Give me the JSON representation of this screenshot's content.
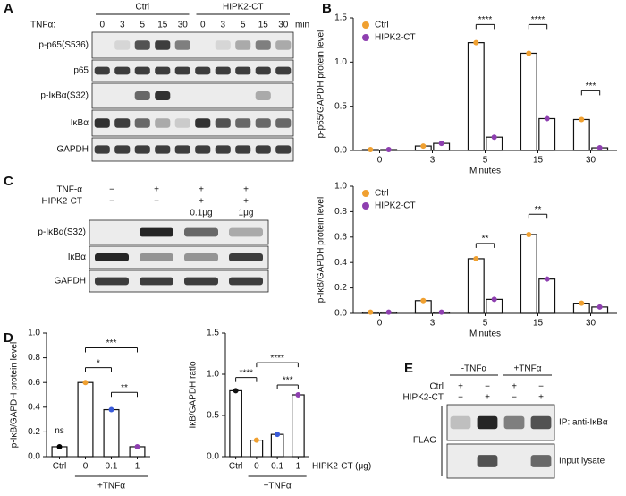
{
  "panel_labels": [
    "A",
    "B",
    "C",
    "D",
    "E"
  ],
  "blot_a": {
    "groups": [
      "Ctrl",
      "HIPK2-CT"
    ],
    "row_label": "TNFα:",
    "lanes": [
      "0",
      "3",
      "5",
      "15",
      "30",
      "0",
      "3",
      "5",
      "15",
      "30"
    ],
    "unit": "min",
    "rows": [
      "p-p65(S536)",
      "p65",
      "p-IκBα(S32)",
      "IκBα",
      "GAPDH"
    ]
  },
  "blot_c": {
    "rows_top": [
      {
        "label": "TNF-α",
        "marks": [
          "−",
          "+",
          "+",
          "+"
        ]
      },
      {
        "label": "HIPK2-CT",
        "marks": [
          "−",
          "−",
          "+",
          "+"
        ]
      }
    ],
    "dose": [
      "0.1μg",
      "1μg"
    ],
    "rows": [
      "p-IκBα(S32)",
      "IκBα",
      "GAPDH"
    ]
  },
  "blot_e": {
    "conditions": [
      "-TNFα",
      "+TNFα"
    ],
    "rows_top": [
      {
        "label": "Ctrl",
        "marks": [
          "+",
          "−",
          "+",
          "−"
        ]
      },
      {
        "label": "HIPK2-CT",
        "marks": [
          "−",
          "+",
          "−",
          "+"
        ]
      }
    ],
    "side": "FLAG",
    "rows": [
      "IP: anti-IκBα",
      "Input lysate"
    ]
  },
  "chart_data": [
    {
      "type": "bar",
      "ylabel": "p-p65/GAPDH protein level",
      "xlabel": "Minutes",
      "categories": [
        "0",
        "3",
        "5",
        "15",
        "30"
      ],
      "series": [
        {
          "name": "Ctrl",
          "color": "#f0a030",
          "values": [
            0.01,
            0.05,
            1.22,
            1.1,
            0.35
          ]
        },
        {
          "name": "HIPK2-CT",
          "color": "#8e3fb0",
          "values": [
            0.01,
            0.08,
            0.15,
            0.36,
            0.03
          ]
        }
      ],
      "ylim": [
        0,
        1.5
      ],
      "yticks": [
        {
          "value": 0,
          "label": "0.0"
        },
        0.5,
        {
          "value": 1,
          "label": "1.0"
        },
        1.5
      ],
      "legend": "upper left",
      "annotations": [
        "****",
        "****",
        "***"
      ]
    },
    {
      "type": "bar",
      "ylabel": "p-IκB/GAPDH protein level",
      "xlabel": "Minutes",
      "categories": [
        "0",
        "3",
        "5",
        "15",
        "30"
      ],
      "series": [
        {
          "name": "Ctrl",
          "color": "#f0a030",
          "values": [
            0.01,
            0.1,
            0.43,
            0.62,
            0.08
          ]
        },
        {
          "name": "HIPK2-CT",
          "color": "#8e3fb0",
          "values": [
            0.01,
            0.01,
            0.11,
            0.27,
            0.05
          ]
        }
      ],
      "ylim": [
        0,
        1.0
      ],
      "yticks": [
        {
          "value": 0,
          "label": "0.0"
        },
        0.2,
        0.4,
        0.6,
        0.8,
        {
          "value": 1,
          "label": "1.0"
        }
      ],
      "legend": "upper left",
      "annotations": [
        "**",
        "**"
      ]
    },
    {
      "type": "bar",
      "ylabel": "p-IκB/GAPDH protein level",
      "categories": [
        "Ctrl",
        "0",
        "0.1",
        "1"
      ],
      "values": [
        0.08,
        0.6,
        0.38,
        0.08
      ],
      "point_colors": [
        "#000000",
        "#f0a030",
        "#3a5bd9",
        "#8e3fb0"
      ],
      "group_label": "+TNFα",
      "ylim": [
        0,
        1.0
      ],
      "yticks": [
        {
          "value": 0,
          "label": "0.0"
        },
        0.2,
        0.4,
        0.6,
        0.8,
        {
          "value": 1,
          "label": "1.0"
        }
      ],
      "annotations": [
        "ns",
        "*",
        "***",
        "**"
      ]
    },
    {
      "type": "bar",
      "ylabel": "IκB/GAPDH ratio",
      "xlabel": "HIPK2-CT (μg)",
      "categories": [
        "Ctrl",
        "0",
        "0.1",
        "1"
      ],
      "values": [
        0.8,
        0.2,
        0.27,
        0.75
      ],
      "point_colors": [
        "#111111",
        "#f0a030",
        "#3a5bd9",
        "#8e3fb0"
      ],
      "group_label": "+TNFα",
      "ylim": [
        0,
        1.5
      ],
      "yticks": [
        {
          "value": 0,
          "label": "0.0"
        },
        0.5,
        {
          "value": 1,
          "label": "1.0"
        },
        1.5
      ],
      "annotations": [
        "****",
        "****",
        "***"
      ]
    }
  ]
}
